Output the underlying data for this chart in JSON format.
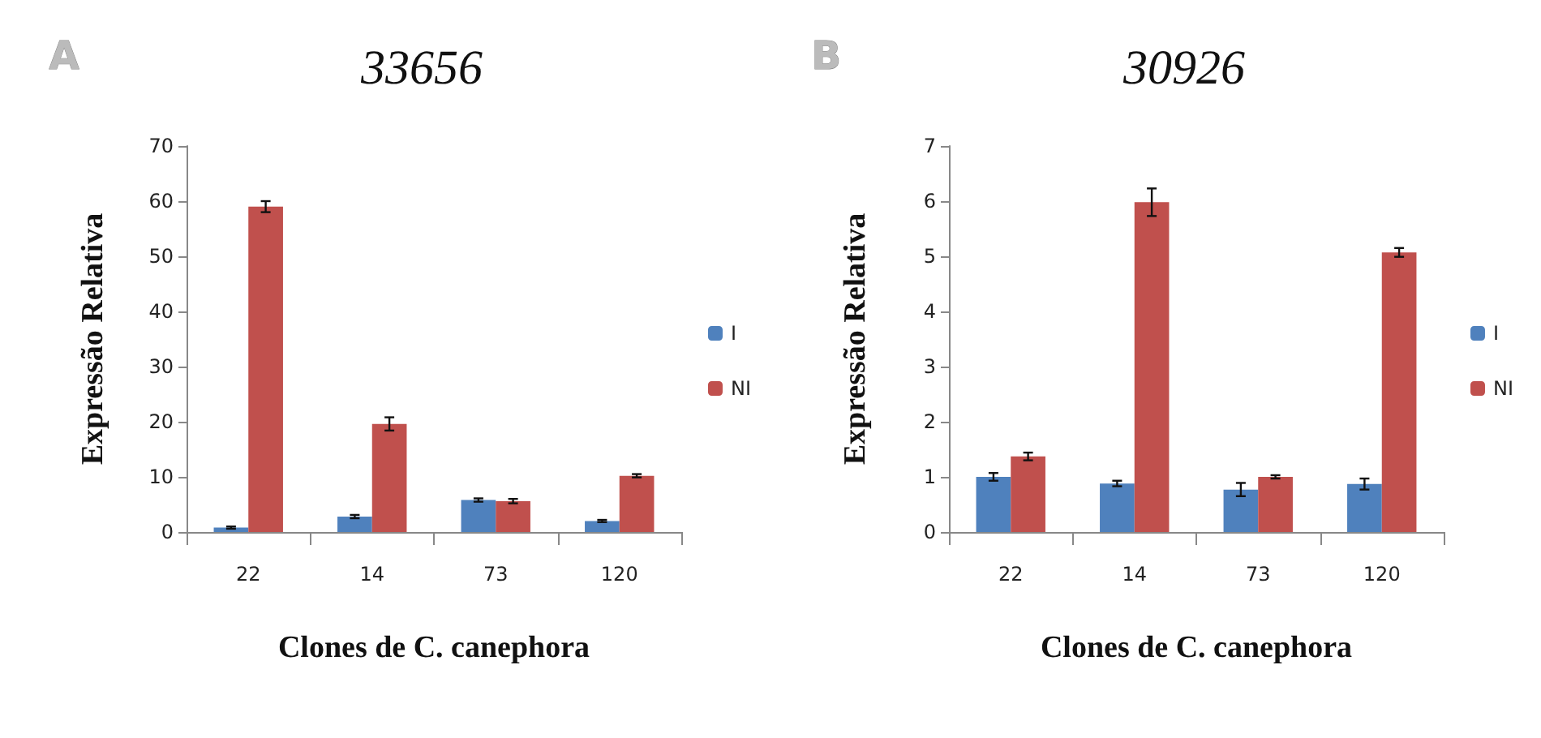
{
  "chart_data": [
    {
      "type": "bar",
      "title": "33656",
      "xlabel": "Clones de C. canephora",
      "ylabel": "Expressão Relativa",
      "annotations": [
        "A"
      ],
      "categories": [
        "22",
        "14",
        "73",
        "120"
      ],
      "series": [
        {
          "name": "I",
          "color": "#4f81bd",
          "values": [
            0.8,
            2.8,
            5.8,
            2.0
          ],
          "errors": [
            0.2,
            0.3,
            0.3,
            0.2
          ]
        },
        {
          "name": "NI",
          "color": "#c0504d",
          "values": [
            59,
            19.6,
            5.6,
            10.2
          ],
          "errors": [
            1.0,
            1.2,
            0.4,
            0.3
          ]
        }
      ],
      "ylim": [
        0,
        70
      ],
      "yticks": [
        0,
        10,
        20,
        30,
        40,
        50,
        60,
        70
      ],
      "grid": false,
      "legend": "right"
    },
    {
      "type": "bar",
      "title": "30926",
      "xlabel": "Clones de C. canephora",
      "ylabel": "Expressão Relativa",
      "annotations": [
        "B"
      ],
      "categories": [
        "22",
        "14",
        "73",
        "120"
      ],
      "series": [
        {
          "name": "I",
          "color": "#4f81bd",
          "values": [
            1.0,
            0.88,
            0.77,
            0.87
          ],
          "errors": [
            0.07,
            0.05,
            0.12,
            0.1
          ]
        },
        {
          "name": "NI",
          "color": "#c0504d",
          "values": [
            1.37,
            5.98,
            1.0,
            5.07
          ],
          "errors": [
            0.07,
            0.25,
            0.03,
            0.08
          ]
        }
      ],
      "ylim": [
        0,
        7
      ],
      "yticks": [
        0,
        1,
        2,
        3,
        4,
        5,
        6,
        7
      ],
      "grid": false,
      "legend": "right"
    }
  ]
}
